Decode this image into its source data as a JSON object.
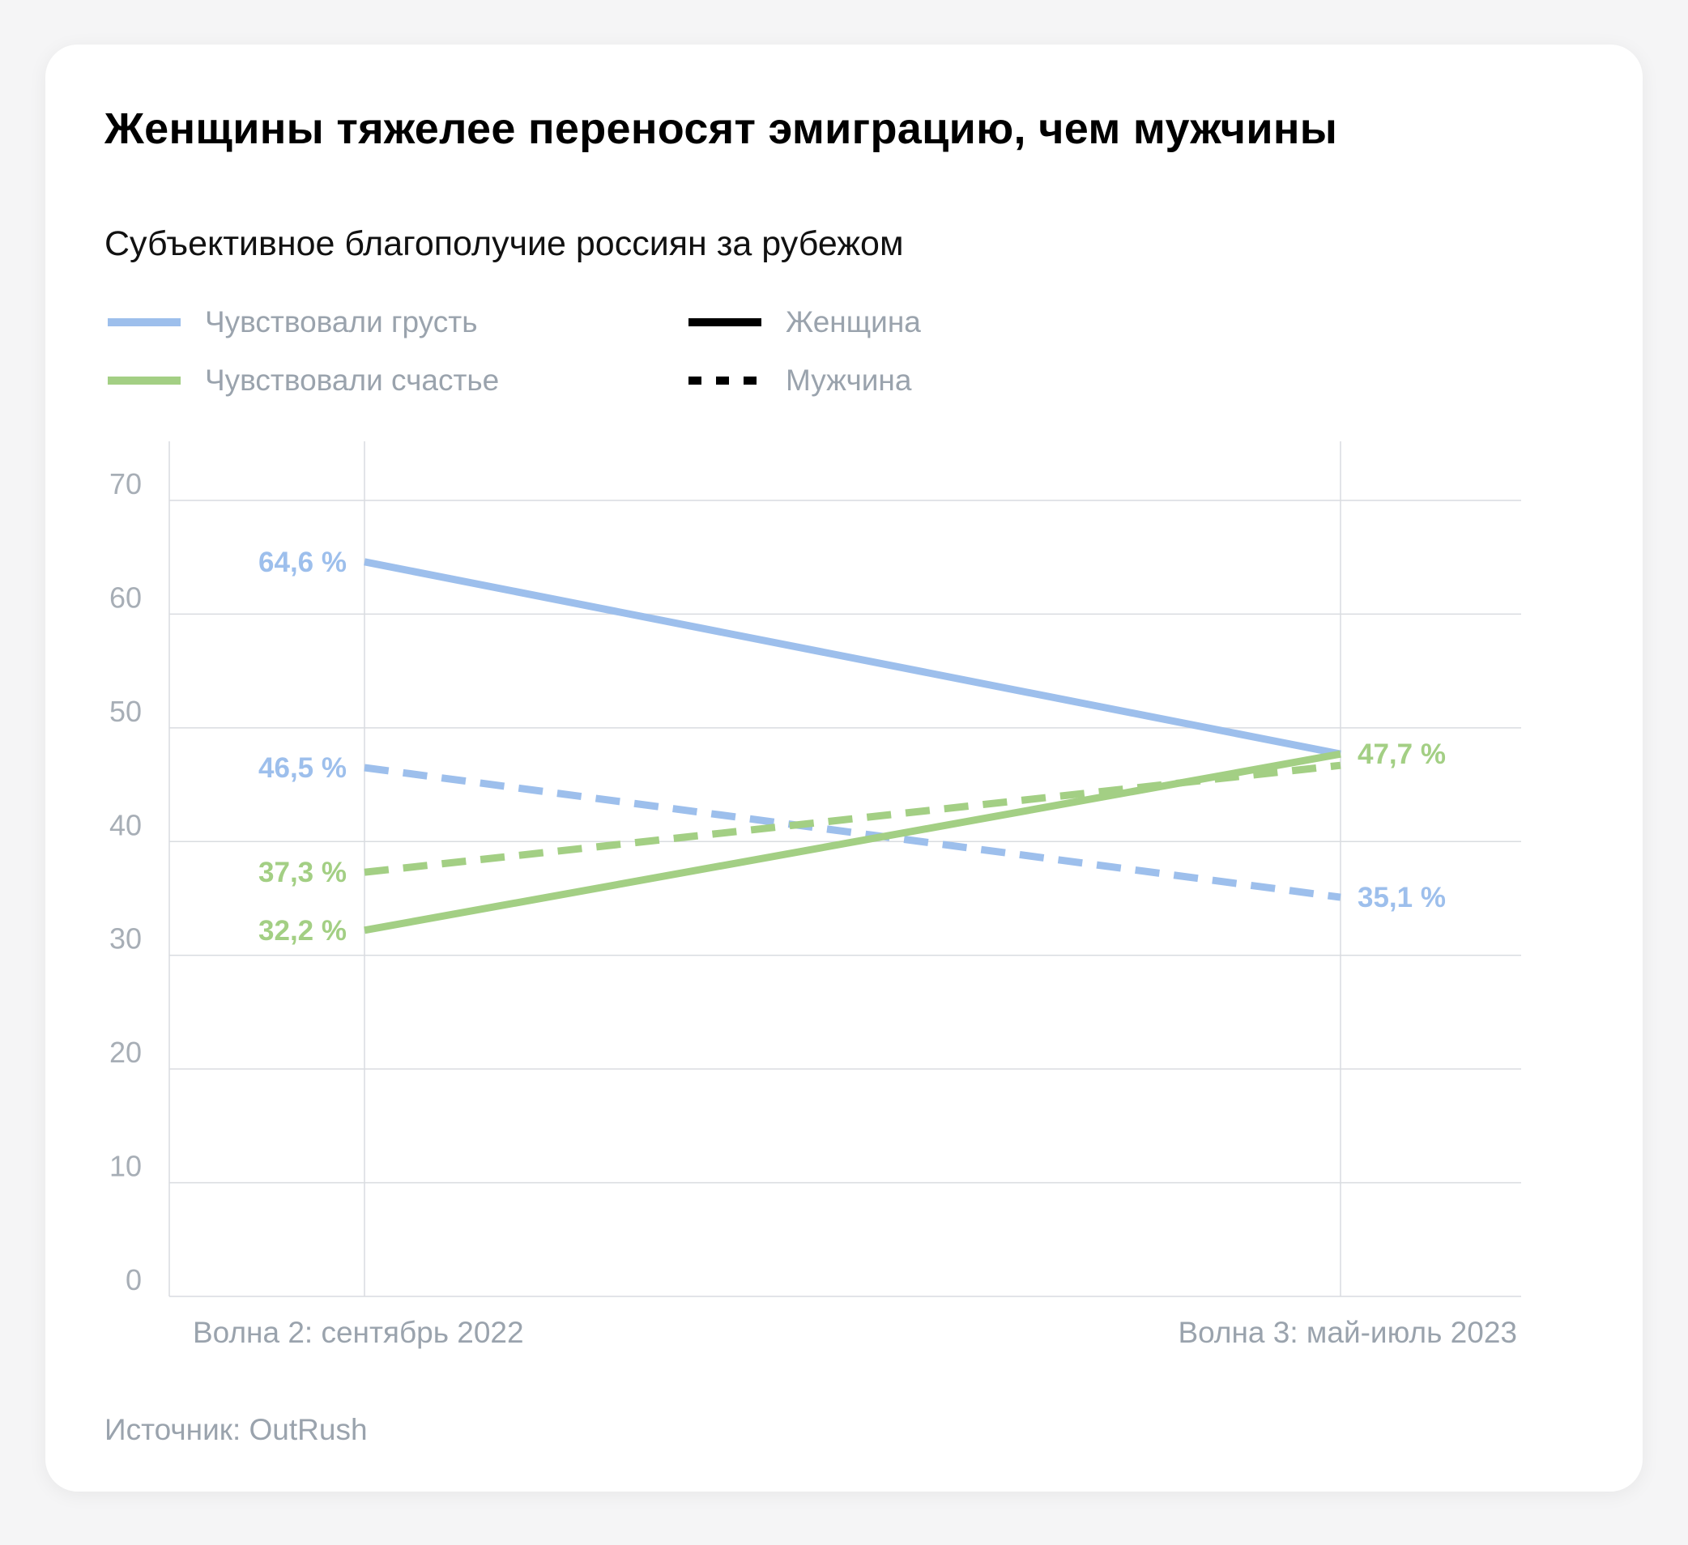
{
  "card": {
    "title": "Женщины тяжелее переносят эмиграцию, чем мужчины",
    "subtitle": "Субъективное благополучие россиян за рубежом",
    "source": "Источник: OutRush"
  },
  "legend": [
    {
      "label": "Чувствовали грусть",
      "color": "#9dbfec",
      "style": "solid"
    },
    {
      "label": "Чувствовали счастье",
      "color": "#a3cf84",
      "style": "solid"
    },
    {
      "label": "Женщина",
      "color": "#000000",
      "style": "solid"
    },
    {
      "label": "Мужчина",
      "color": "#000000",
      "style": "dashed"
    }
  ],
  "chart_data": {
    "type": "line",
    "title": "Женщины тяжелее переносят эмиграцию, чем мужчины",
    "subtitle": "Субъективное благополучие россиян за рубежом",
    "categories": [
      "Волна 2: сентябрь 2022",
      "Волна 3: май-июль 2023"
    ],
    "ylim": [
      0,
      70
    ],
    "yticks": [
      "0",
      "10",
      "20",
      "30",
      "40",
      "50",
      "60",
      "70"
    ],
    "grid": true,
    "legend_position": "top-left",
    "series": [
      {
        "emotion": "Чувствовали грусть",
        "gender": "Женщина",
        "color": "#9dbfec",
        "style": "solid",
        "values": [
          64.6,
          47.7
        ],
        "labels": [
          "64,6 %",
          ""
        ]
      },
      {
        "emotion": "Чувствовали грусть",
        "gender": "Мужчина",
        "color": "#9dbfec",
        "style": "dashed",
        "values": [
          46.5,
          35.1
        ],
        "labels": [
          "46,5 %",
          "35,1 %"
        ]
      },
      {
        "emotion": "Чувствовали счастье",
        "gender": "Мужчина",
        "color": "#a3cf84",
        "style": "dashed",
        "values": [
          37.3,
          46.7
        ],
        "labels": [
          "37,3 %",
          ""
        ]
      },
      {
        "emotion": "Чувствовали счастье",
        "gender": "Женщина",
        "color": "#a3cf84",
        "style": "solid",
        "values": [
          32.2,
          47.7
        ],
        "labels": [
          "32,2 %",
          "47,7 %"
        ]
      }
    ]
  }
}
